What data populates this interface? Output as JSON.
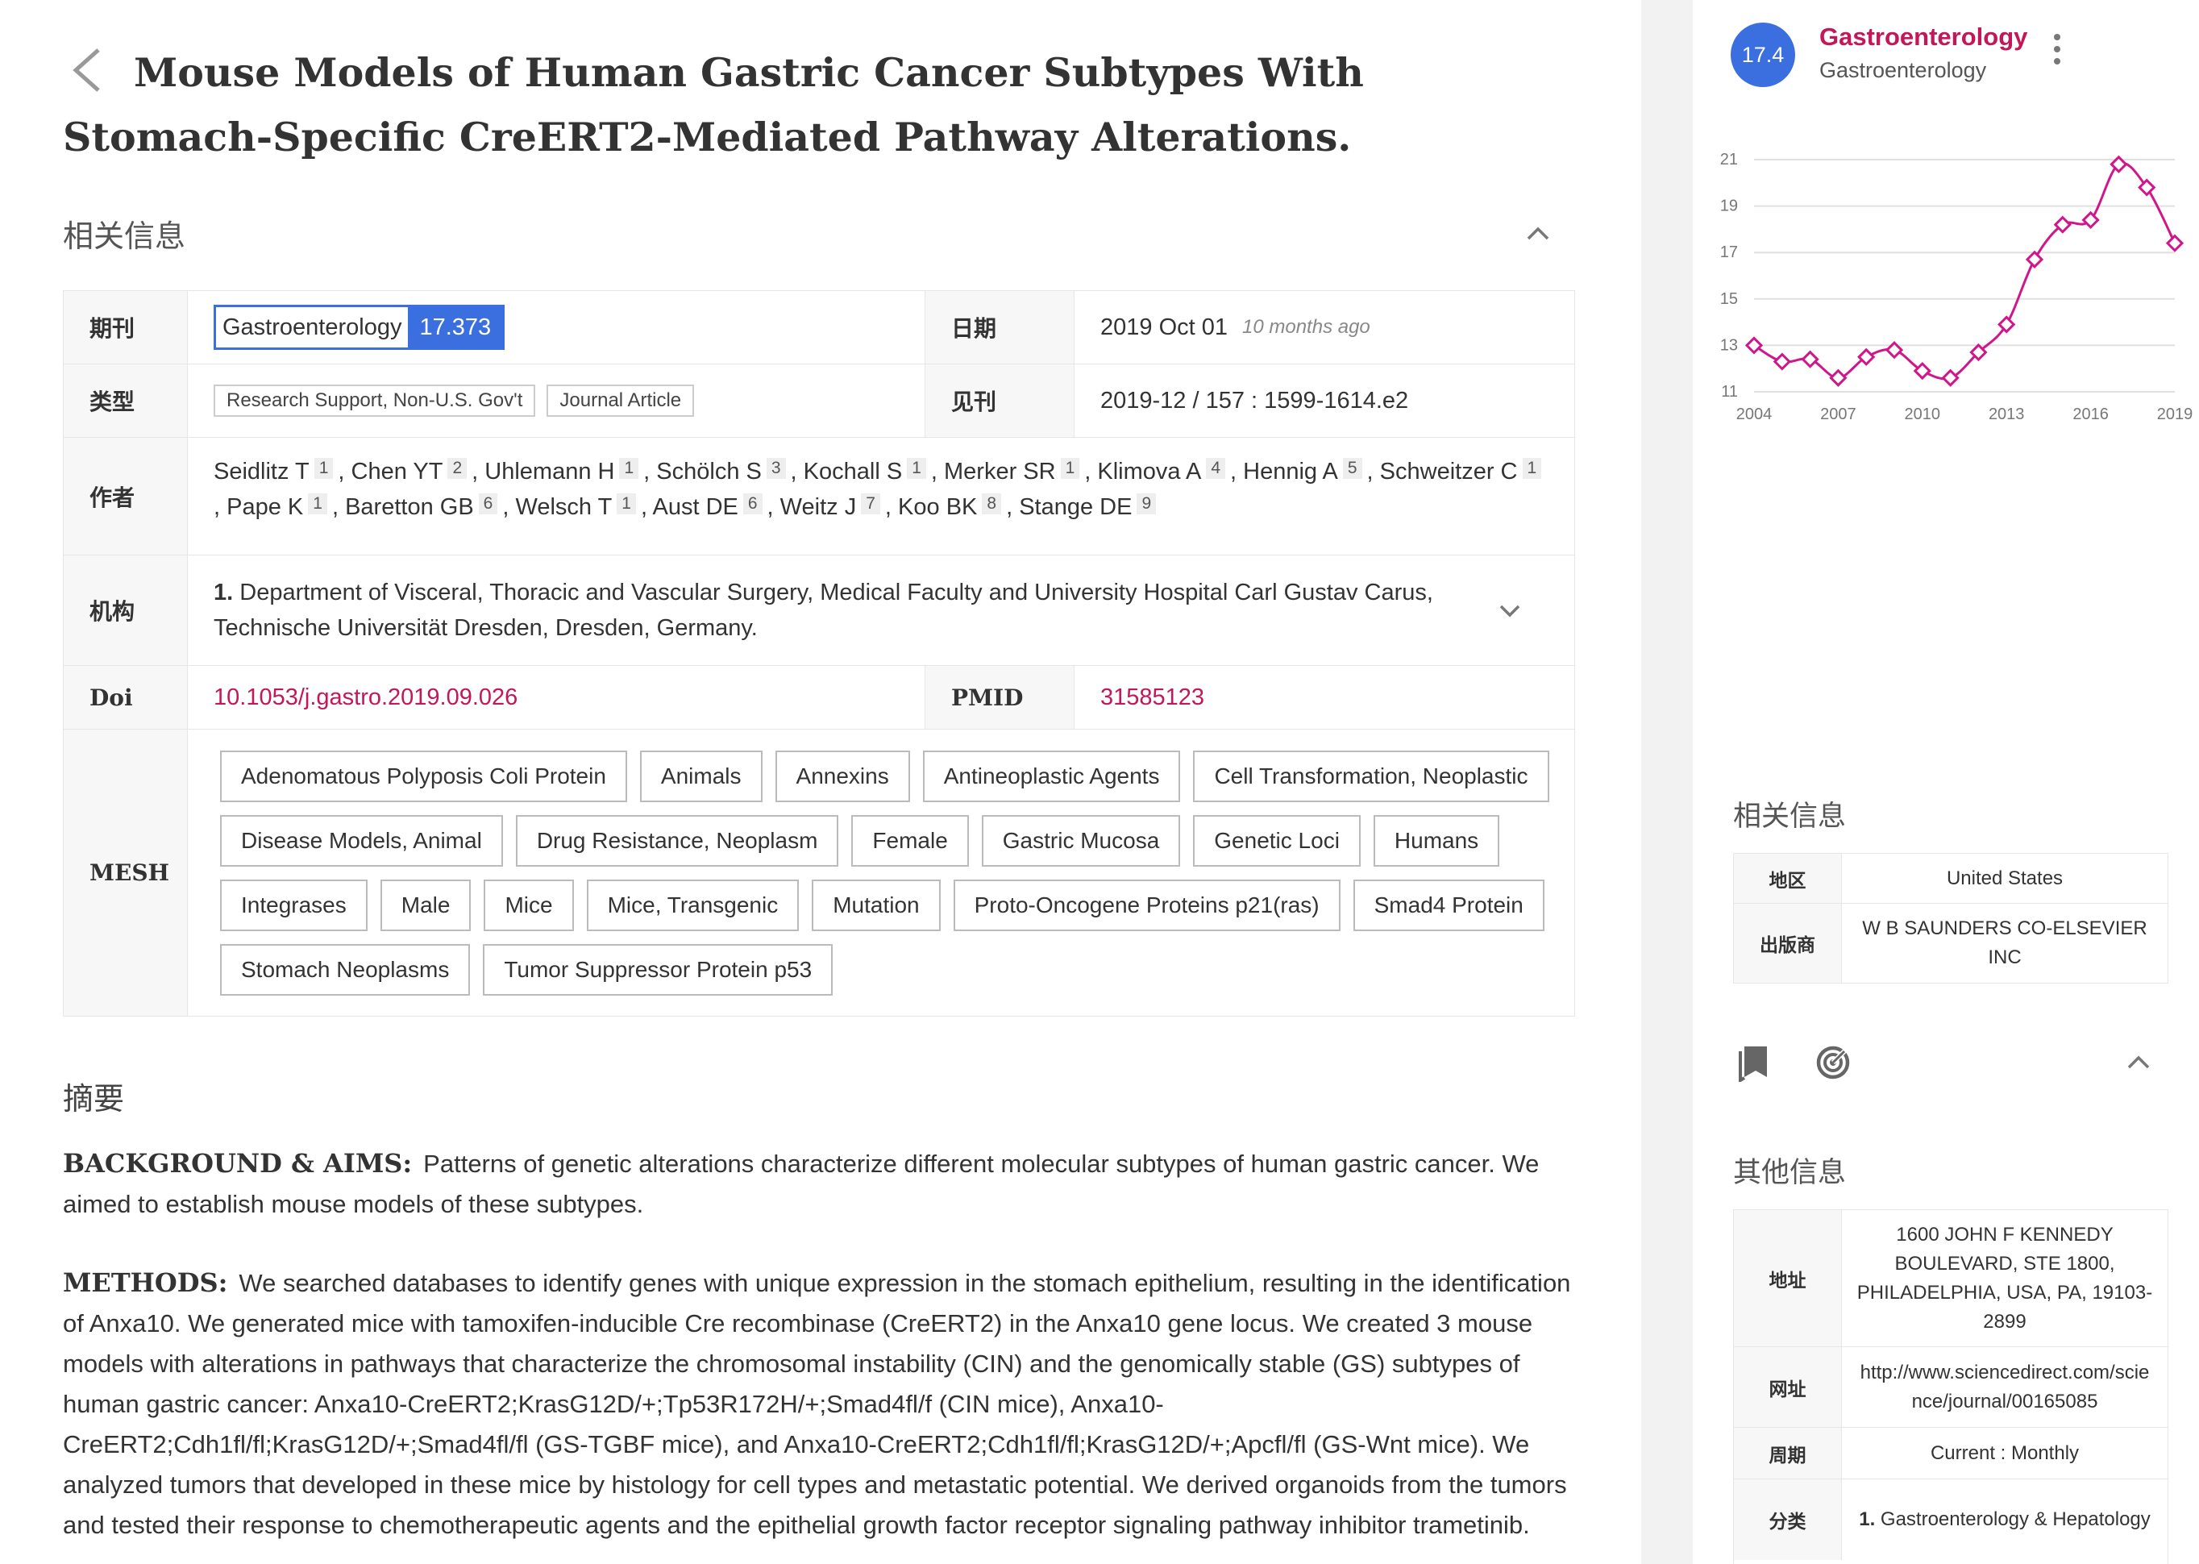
{
  "article": {
    "title": "Mouse Models of Human Gastric Cancer Subtypes With Stomach-Specific CreERT2-Mediated Pathway Alterations."
  },
  "info_section": {
    "heading": "相关信息",
    "labels": {
      "journal": "期刊",
      "date": "日期",
      "type": "类型",
      "published": "见刊",
      "authors": "作者",
      "institution": "机构",
      "doi": "Doi",
      "pmid": "PMID",
      "mesh": "MESH"
    },
    "journal": {
      "name": "Gastroenterology",
      "impact_factor": "17.373"
    },
    "date": {
      "value": "2019 Oct 01",
      "relative": "10 months ago"
    },
    "types": [
      "Research Support, Non-U.S. Gov't",
      "Journal Article"
    ],
    "published": "2019-12 / 157 : 1599-1614.e2",
    "authors": [
      {
        "name": "Seidlitz T",
        "aff": "1"
      },
      {
        "name": "Chen YT",
        "aff": "2"
      },
      {
        "name": "Uhlemann H",
        "aff": "1"
      },
      {
        "name": "Schölch S",
        "aff": "3"
      },
      {
        "name": "Kochall S",
        "aff": "1"
      },
      {
        "name": "Merker SR",
        "aff": "1"
      },
      {
        "name": "Klimova A",
        "aff": "4"
      },
      {
        "name": "Hennig A",
        "aff": "5"
      },
      {
        "name": "Schweitzer C",
        "aff": "1"
      },
      {
        "name": "Pape K",
        "aff": "1"
      },
      {
        "name": "Baretton GB",
        "aff": "6"
      },
      {
        "name": "Welsch T",
        "aff": "1"
      },
      {
        "name": "Aust DE",
        "aff": "6"
      },
      {
        "name": "Weitz J",
        "aff": "7"
      },
      {
        "name": "Koo BK",
        "aff": "8"
      },
      {
        "name": "Stange DE",
        "aff": "9"
      }
    ],
    "institution": {
      "number": "1.",
      "text": "Department of Visceral, Thoracic and Vascular Surgery, Medical Faculty and University Hospital Carl Gustav Carus, Technische Universität Dresden, Dresden, Germany."
    },
    "doi": "10.1053/j.gastro.2019.09.026",
    "pmid": "31585123",
    "mesh_terms": [
      "Adenomatous Polyposis Coli Protein",
      "Animals",
      "Annexins",
      "Antineoplastic Agents",
      "Cell Transformation, Neoplastic",
      "Disease Models, Animal",
      "Drug Resistance, Neoplasm",
      "Female",
      "Gastric Mucosa",
      "Genetic Loci",
      "Humans",
      "Integrases",
      "Male",
      "Mice",
      "Mice, Transgenic",
      "Mutation",
      "Proto-Oncogene Proteins p21(ras)",
      "Smad4 Protein",
      "Stomach Neoplasms",
      "Tumor Suppressor Protein p53"
    ]
  },
  "abstract": {
    "heading": "摘要",
    "background_label": "BACKGROUND & AIMS:",
    "background": "Patterns of genetic alterations characterize different molecular subtypes of human gastric cancer. We aimed to establish mouse models of these subtypes.",
    "methods_label": "METHODS:",
    "methods": "We searched databases to identify genes with unique expression in the stomach epithelium, resulting in the identification of Anxa10. We generated mice with tamoxifen-inducible Cre recombinase (CreERT2) in the Anxa10 gene locus. We created 3 mouse models with alterations in pathways that characterize the chromosomal instability (CIN) and the genomically stable (GS) subtypes of human gastric cancer: Anxa10-CreERT2;KrasG12D/+;Tp53R172H/+;Smad4fl/f (CIN mice), Anxa10-CreERT2;Cdh1fl/fl;KrasG12D/+;Smad4fl/fl (GS-TGBF mice), and Anxa10-CreERT2;Cdh1fl/fl;KrasG12D/+;Apcfl/fl (GS-Wnt mice). We analyzed tumors that developed in these mice by histology for cell types and metastatic potential. We derived organoids from the tumors and tested their response to chemotherapeutic agents and the epithelial growth factor receptor signaling pathway inhibitor trametinib."
  },
  "sidebar": {
    "journal_badge": "17.4",
    "journal_title": "Gastroenterology",
    "journal_subtitle": "Gastroenterology",
    "related_heading": "相关信息",
    "related": [
      {
        "label": "地区",
        "value": "United States"
      },
      {
        "label": "出版商",
        "value": "W B SAUNDERS CO-ELSEVIER INC"
      }
    ],
    "other_heading": "其他信息",
    "other": [
      {
        "label": "地址",
        "value": "1600 JOHN F KENNEDY BOULEVARD, STE 1800, PHILADELPHIA, USA, PA, 19103-2899"
      },
      {
        "label": "网址",
        "value": "http://www.sciencedirect.com/science/journal/00165085"
      },
      {
        "label": "周期",
        "value": "Current : Monthly"
      },
      {
        "label": "分类",
        "number": "1.",
        "value": "Gastroenterology & Hepatology"
      }
    ],
    "icons": [
      "bookmark-icon",
      "radar-icon",
      "chevron-up-icon",
      "more-vert-icon"
    ]
  },
  "chart_data": {
    "type": "line",
    "x": [
      2004,
      2005,
      2006,
      2007,
      2008,
      2009,
      2010,
      2011,
      2012,
      2013,
      2014,
      2015,
      2016,
      2017,
      2018,
      2019
    ],
    "series": [
      {
        "values": [
          13.0,
          12.3,
          12.4,
          11.6,
          12.5,
          12.8,
          11.9,
          11.6,
          12.7,
          13.9,
          16.7,
          18.2,
          18.4,
          20.8,
          19.8,
          17.4
        ]
      }
    ],
    "x_ticks": [
      "2004",
      "2007",
      "2010",
      "2013",
      "2016",
      "2019"
    ],
    "y_ticks": [
      "11",
      "13",
      "15",
      "17",
      "19",
      "21"
    ],
    "ylim": [
      11,
      21
    ],
    "xlim": [
      2004,
      2019
    ],
    "grid": true,
    "color": "#d0168a"
  }
}
